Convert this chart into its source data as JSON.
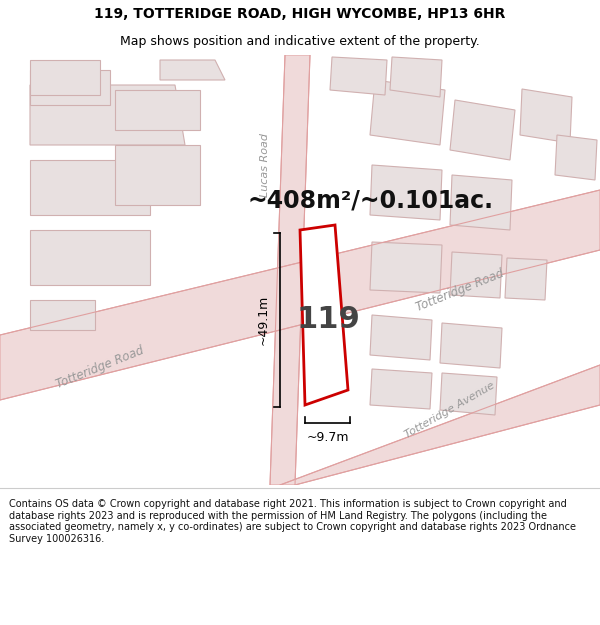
{
  "title": "119, TOTTERIDGE ROAD, HIGH WYCOMBE, HP13 6HR",
  "subtitle": "Map shows position and indicative extent of the property.",
  "area_text": "~408m²/~0.101ac.",
  "label_119": "119",
  "dim_width": "~9.7m",
  "dim_height": "~49.1m",
  "footer": "Contains OS data © Crown copyright and database right 2021. This information is subject to Crown copyright and database rights 2023 and is reproduced with the permission of HM Land Registry. The polygons (including the associated geometry, namely x, y co-ordinates) are subject to Crown copyright and database rights 2023 Ordnance Survey 100026316.",
  "bg_color": "#f2eeee",
  "road_fill": "#f0dada",
  "road_edge": "#e0a0a0",
  "building_fill": "#e8e0e0",
  "building_edge": "#d0b0b0",
  "highlight_edge": "#cc0000",
  "title_fontsize": 10,
  "subtitle_fontsize": 9,
  "area_fontsize": 17,
  "label_fontsize": 22,
  "dim_fontsize": 9,
  "road_label_fontsize": 8,
  "footer_fontsize": 7,
  "title_color": "#000000",
  "subtitle_color": "#000000",
  "area_color": "#111111",
  "label_color": "#444444",
  "dim_color": "#000000",
  "road_label_color": "#999999",
  "footer_color": "#111111",
  "map_border_color": "#cccccc"
}
